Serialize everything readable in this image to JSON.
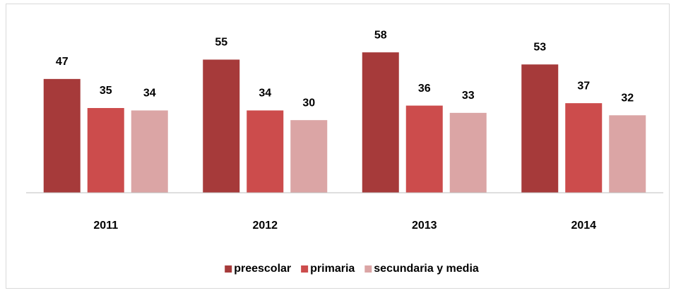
{
  "chart_data": {
    "type": "bar",
    "categories": [
      "2011",
      "2012",
      "2013",
      "2014"
    ],
    "series": [
      {
        "name": "preescolar",
        "color": "#a63a3a",
        "values": [
          47,
          55,
          58,
          53
        ]
      },
      {
        "name": "primaria",
        "color": "#cc4c4c",
        "values": [
          35,
          34,
          36,
          37
        ]
      },
      {
        "name": "secundaria y media",
        "color": "#dba5a5",
        "values": [
          34,
          30,
          33,
          32
        ]
      }
    ],
    "ylim": [
      0,
      70
    ],
    "legend": "bottom"
  }
}
